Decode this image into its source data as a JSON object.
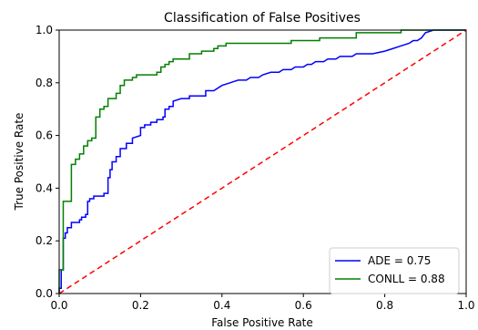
{
  "chart_data": {
    "type": "line",
    "title": "Classification of False Positives",
    "xlabel": "False Positive Rate",
    "ylabel": "True Positive Rate",
    "xlim": [
      0,
      1
    ],
    "ylim": [
      0,
      1
    ],
    "xticks": [
      "0.0",
      "0.2",
      "0.4",
      "0.6",
      "0.8",
      "1.0"
    ],
    "yticks": [
      "0.0",
      "0.2",
      "0.4",
      "0.6",
      "0.8",
      "1.0"
    ],
    "grid": false,
    "legend_position": "lower-right",
    "series": [
      {
        "name": "ADE = 0.75",
        "color": "#0000ff",
        "style": "solid",
        "points": [
          [
            0,
            0
          ],
          [
            0,
            0.02
          ],
          [
            0.005,
            0.02
          ],
          [
            0.005,
            0.09
          ],
          [
            0.01,
            0.09
          ],
          [
            0.01,
            0.21
          ],
          [
            0.015,
            0.21
          ],
          [
            0.015,
            0.23
          ],
          [
            0.02,
            0.23
          ],
          [
            0.02,
            0.25
          ],
          [
            0.03,
            0.25
          ],
          [
            0.03,
            0.27
          ],
          [
            0.05,
            0.27
          ],
          [
            0.05,
            0.28
          ],
          [
            0.055,
            0.28
          ],
          [
            0.055,
            0.29
          ],
          [
            0.065,
            0.29
          ],
          [
            0.065,
            0.3
          ],
          [
            0.07,
            0.3
          ],
          [
            0.07,
            0.35
          ],
          [
            0.075,
            0.35
          ],
          [
            0.075,
            0.36
          ],
          [
            0.085,
            0.36
          ],
          [
            0.085,
            0.37
          ],
          [
            0.11,
            0.37
          ],
          [
            0.11,
            0.38
          ],
          [
            0.12,
            0.38
          ],
          [
            0.12,
            0.44
          ],
          [
            0.125,
            0.44
          ],
          [
            0.125,
            0.47
          ],
          [
            0.13,
            0.47
          ],
          [
            0.13,
            0.5
          ],
          [
            0.14,
            0.5
          ],
          [
            0.14,
            0.52
          ],
          [
            0.15,
            0.52
          ],
          [
            0.15,
            0.55
          ],
          [
            0.165,
            0.55
          ],
          [
            0.165,
            0.57
          ],
          [
            0.18,
            0.57
          ],
          [
            0.18,
            0.59
          ],
          [
            0.2,
            0.6
          ],
          [
            0.2,
            0.63
          ],
          [
            0.21,
            0.63
          ],
          [
            0.21,
            0.64
          ],
          [
            0.225,
            0.64
          ],
          [
            0.225,
            0.65
          ],
          [
            0.24,
            0.65
          ],
          [
            0.24,
            0.66
          ],
          [
            0.255,
            0.66
          ],
          [
            0.255,
            0.67
          ],
          [
            0.26,
            0.67
          ],
          [
            0.26,
            0.7
          ],
          [
            0.27,
            0.7
          ],
          [
            0.27,
            0.71
          ],
          [
            0.28,
            0.71
          ],
          [
            0.28,
            0.73
          ],
          [
            0.3,
            0.74
          ],
          [
            0.32,
            0.74
          ],
          [
            0.32,
            0.75
          ],
          [
            0.36,
            0.75
          ],
          [
            0.36,
            0.77
          ],
          [
            0.38,
            0.77
          ],
          [
            0.4,
            0.79
          ],
          [
            0.42,
            0.8
          ],
          [
            0.44,
            0.81
          ],
          [
            0.46,
            0.81
          ],
          [
            0.47,
            0.82
          ],
          [
            0.49,
            0.82
          ],
          [
            0.5,
            0.83
          ],
          [
            0.52,
            0.84
          ],
          [
            0.54,
            0.84
          ],
          [
            0.55,
            0.85
          ],
          [
            0.57,
            0.85
          ],
          [
            0.58,
            0.86
          ],
          [
            0.6,
            0.86
          ],
          [
            0.61,
            0.87
          ],
          [
            0.62,
            0.87
          ],
          [
            0.63,
            0.88
          ],
          [
            0.65,
            0.88
          ],
          [
            0.66,
            0.89
          ],
          [
            0.68,
            0.89
          ],
          [
            0.69,
            0.9
          ],
          [
            0.72,
            0.9
          ],
          [
            0.73,
            0.91
          ],
          [
            0.77,
            0.91
          ],
          [
            0.8,
            0.92
          ],
          [
            0.82,
            0.93
          ],
          [
            0.84,
            0.94
          ],
          [
            0.86,
            0.95
          ],
          [
            0.87,
            0.96
          ],
          [
            0.88,
            0.96
          ],
          [
            0.89,
            0.97
          ],
          [
            0.9,
            0.99
          ],
          [
            0.92,
            1.0
          ],
          [
            1.0,
            1.0
          ]
        ]
      },
      {
        "name": "CONLL = 0.88",
        "color": "#008000",
        "style": "solid",
        "points": [
          [
            0,
            0
          ],
          [
            0,
            0.09
          ],
          [
            0.01,
            0.09
          ],
          [
            0.01,
            0.35
          ],
          [
            0.03,
            0.35
          ],
          [
            0.03,
            0.49
          ],
          [
            0.04,
            0.49
          ],
          [
            0.04,
            0.51
          ],
          [
            0.05,
            0.51
          ],
          [
            0.05,
            0.53
          ],
          [
            0.06,
            0.53
          ],
          [
            0.06,
            0.56
          ],
          [
            0.07,
            0.56
          ],
          [
            0.07,
            0.58
          ],
          [
            0.08,
            0.58
          ],
          [
            0.08,
            0.59
          ],
          [
            0.09,
            0.59
          ],
          [
            0.09,
            0.67
          ],
          [
            0.1,
            0.67
          ],
          [
            0.1,
            0.7
          ],
          [
            0.11,
            0.7
          ],
          [
            0.11,
            0.71
          ],
          [
            0.12,
            0.71
          ],
          [
            0.12,
            0.74
          ],
          [
            0.14,
            0.74
          ],
          [
            0.14,
            0.76
          ],
          [
            0.15,
            0.76
          ],
          [
            0.15,
            0.79
          ],
          [
            0.16,
            0.79
          ],
          [
            0.16,
            0.81
          ],
          [
            0.18,
            0.81
          ],
          [
            0.18,
            0.82
          ],
          [
            0.19,
            0.82
          ],
          [
            0.19,
            0.83
          ],
          [
            0.24,
            0.83
          ],
          [
            0.24,
            0.84
          ],
          [
            0.25,
            0.84
          ],
          [
            0.25,
            0.86
          ],
          [
            0.26,
            0.86
          ],
          [
            0.26,
            0.87
          ],
          [
            0.27,
            0.87
          ],
          [
            0.27,
            0.88
          ],
          [
            0.28,
            0.88
          ],
          [
            0.28,
            0.89
          ],
          [
            0.3,
            0.89
          ],
          [
            0.32,
            0.89
          ],
          [
            0.32,
            0.91
          ],
          [
            0.35,
            0.91
          ],
          [
            0.35,
            0.92
          ],
          [
            0.38,
            0.92
          ],
          [
            0.38,
            0.93
          ],
          [
            0.39,
            0.93
          ],
          [
            0.39,
            0.94
          ],
          [
            0.41,
            0.94
          ],
          [
            0.41,
            0.95
          ],
          [
            0.57,
            0.95
          ],
          [
            0.57,
            0.96
          ],
          [
            0.64,
            0.96
          ],
          [
            0.64,
            0.97
          ],
          [
            0.73,
            0.97
          ],
          [
            0.73,
            0.99
          ],
          [
            0.84,
            0.99
          ],
          [
            0.84,
            1.0
          ],
          [
            1.0,
            1.0
          ]
        ]
      },
      {
        "name": "",
        "color": "#ff0000",
        "style": "dashed",
        "points": [
          [
            0,
            0
          ],
          [
            1,
            1
          ]
        ]
      }
    ]
  }
}
